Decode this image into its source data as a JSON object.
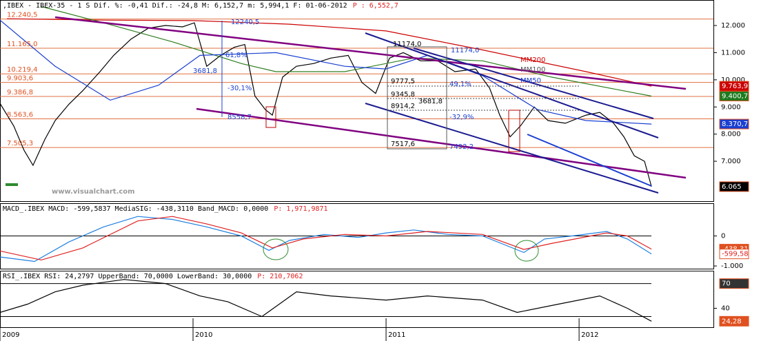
{
  "chart_data": [
    {
      "type": "line",
      "title": ",IBEX - IBEX-35 - 1 S Dif. %: -0,41 Dif.: -24,8 M: 6,152,7 m: 5,994,1 F: 01-06-2012",
      "price_label": "P : 6,552,7",
      "xlim": [
        2009,
        2012.696
      ],
      "xticks": [
        2009,
        2010,
        2011,
        2012
      ],
      "ylim": [
        5530,
        12940
      ],
      "yticks": [
        {
          "value": 12000,
          "label": "12.000"
        },
        {
          "value": 11000,
          "label": "11.000"
        },
        {
          "value": 10000,
          "label": "10.000"
        },
        {
          "value": 9000,
          "label": "9.000"
        },
        {
          "value": 8000,
          "label": "8.000"
        },
        {
          "value": 7000,
          "label": "7.000"
        }
      ],
      "levels": [
        {
          "value": 12240.5,
          "label": "12.240,5"
        },
        {
          "value": 11165.0,
          "label": "11.165,0"
        },
        {
          "value": 10219.4,
          "label": "10.219,4"
        },
        {
          "value": 9903.6,
          "label": "9.903,6"
        },
        {
          "value": 9386.8,
          "label": "9.386,8"
        },
        {
          "value": 8563.6,
          "label": "8.563,6"
        },
        {
          "value": 7505.3,
          "label": "7.505,3"
        }
      ],
      "series": [
        {
          "name": "IBEX",
          "color": "#000000",
          "x": [
            2009.0,
            2009.071,
            2009.125,
            2009.171,
            2009.232,
            2009.286,
            2009.357,
            2009.429,
            2009.518,
            2009.589,
            2009.679,
            2009.768,
            2009.857,
            2009.946,
            2010.007,
            2010.071,
            2010.143,
            2010.214,
            2010.268,
            2010.321,
            2010.375,
            2010.411,
            2010.464,
            2010.536,
            2010.625,
            2010.714,
            2010.804,
            2010.875,
            2010.946,
            2011.018,
            2011.089,
            2011.179,
            2011.268,
            2011.357,
            2011.464,
            2011.536,
            2011.589,
            2011.643,
            2011.696,
            2011.768,
            2011.839,
            2011.929,
            2012.036,
            2012.107,
            2012.179,
            2012.232,
            2012.286,
            2012.339,
            2012.375
          ],
          "values": [
            9130,
            8300,
            7400,
            6850,
            7800,
            8500,
            9100,
            9600,
            10300,
            10900,
            11500,
            11900,
            12000,
            11950,
            12100,
            10500,
            10900,
            11200,
            11300,
            9400,
            8900,
            8700,
            10100,
            10500,
            10600,
            10800,
            10900,
            9900,
            9500,
            10800,
            11000,
            10700,
            10700,
            10300,
            10400,
            9700,
            8700,
            7900,
            8300,
            9000,
            8500,
            8400,
            8700,
            8800,
            8400,
            7900,
            7200,
            7000,
            6065
          ]
        },
        {
          "name": "MM200",
          "color": "#cc0000",
          "x": [
            2009.036,
            2009.536,
            2010.0,
            2010.5,
            2011.0,
            2011.5,
            2012.036,
            2012.375
          ],
          "values": [
            12250,
            12200,
            12180,
            12050,
            11800,
            11100,
            10300,
            9763.9
          ]
        },
        {
          "name": "MM100",
          "color": "#2e7d1e",
          "x": [
            2009.214,
            2009.536,
            2009.893,
            2010.25,
            2010.429,
            2010.786,
            2011.143,
            2011.5,
            2011.857,
            2012.375
          ],
          "values": [
            12700,
            12100,
            11400,
            10600,
            10300,
            10300,
            10800,
            10700,
            10100,
            9400.7
          ]
        },
        {
          "name": "MM50",
          "color": "#1a3fd0",
          "x": [
            2009.0,
            2009.286,
            2009.571,
            2009.821,
            2010.036,
            2010.429,
            2010.786,
            2011.0,
            2011.214,
            2011.5,
            2011.786,
            2012.036,
            2012.375
          ],
          "values": [
            12200,
            10500,
            9250,
            9800,
            10900,
            11000,
            10500,
            10400,
            10900,
            10150,
            8900,
            8500,
            8370.7
          ]
        }
      ],
      "right_boxes": [
        {
          "value": 9763.9,
          "label": "9.763,9",
          "color": "#cc0000"
        },
        {
          "value": 9400.7,
          "label": "9.400,7",
          "color": "#1e7a1e"
        },
        {
          "value": 8370.7,
          "label": "8.370,7",
          "color": "#1a3fd0"
        },
        {
          "value": 6065,
          "label": "6.065",
          "color": "#000000"
        }
      ],
      "annotations": [
        "12240,5",
        "61,8%",
        "3681,8",
        "-30,1%",
        "8558,7",
        "11174,0",
        "11174,0",
        "9777,5",
        "49,1%",
        "9345,8",
        "8914,2",
        "3681,8",
        "-32,9%",
        "7517,6",
        "7492,2",
        "MM200",
        "MM100",
        "MM50",
        "www.visualchart.com"
      ]
    },
    {
      "type": "line",
      "title": "MACD_.IBEX MACD: -599,5837 MediaSIG: -438,3110 Band_MACD: 0,0000",
      "price_label": "P: 1,971,9871",
      "xlim": [
        2009,
        2012.696
      ],
      "ylim": [
        -1090,
        1090
      ],
      "yticks": [
        0,
        {
          "value": -1000,
          "label": "-1.000"
        }
      ],
      "series": [
        {
          "name": "MACD",
          "color": "#1e7fe0",
          "x": [
            2009.0,
            2009.179,
            2009.357,
            2009.536,
            2009.714,
            2009.893,
            2010.071,
            2010.25,
            2010.393,
            2010.5,
            2010.679,
            2010.857,
            2011.0,
            2011.143,
            2011.321,
            2011.5,
            2011.714,
            2011.821,
            2011.964,
            2012.143,
            2012.25,
            2012.375
          ],
          "values": [
            -700,
            -850,
            -200,
            300,
            650,
            550,
            300,
            0,
            -480,
            -150,
            50,
            -50,
            100,
            200,
            50,
            0,
            -550,
            -100,
            0,
            150,
            -100,
            -599.58
          ]
        },
        {
          "name": "MediaSIG",
          "color": "#e02020",
          "x": [
            2009.0,
            2009.214,
            2009.429,
            2009.714,
            2009.893,
            2010.071,
            2010.25,
            2010.411,
            2010.571,
            2010.786,
            2011.0,
            2011.214,
            2011.5,
            2011.714,
            2011.857,
            2012.143,
            2012.25,
            2012.375
          ],
          "values": [
            -500,
            -800,
            -400,
            500,
            650,
            400,
            100,
            -400,
            -100,
            50,
            0,
            150,
            50,
            -450,
            -250,
            100,
            0,
            -438.31
          ]
        }
      ],
      "right_boxes": [
        {
          "value": -438.31,
          "label": "-438,31",
          "color": "#e05020"
        },
        {
          "value": -599.58,
          "label": "-599,58",
          "color": "#ffffff"
        }
      ]
    },
    {
      "type": "line",
      "title": "RSI_.IBEX RSI: 24,2797 UpperBand: 70,0000 LowerBand: 30,0000",
      "price_label": "P: 210,7062",
      "xlim": [
        2009,
        2012.696
      ],
      "xticks": [
        2009,
        2010,
        2011,
        2012
      ],
      "ylim": [
        17,
        85.6
      ],
      "yticks": [
        40
      ],
      "bands": [
        70,
        30
      ],
      "series": [
        {
          "name": "RSI",
          "color": "#000000",
          "x": [
            2009.0,
            2009.143,
            2009.286,
            2009.429,
            2009.643,
            2009.857,
            2010.036,
            2010.179,
            2010.357,
            2010.536,
            2010.714,
            2011.0,
            2011.214,
            2011.5,
            2011.679,
            2011.893,
            2012.107,
            2012.25,
            2012.375
          ],
          "values": [
            35,
            45,
            60,
            68,
            75,
            70,
            55,
            48,
            30,
            60,
            55,
            50,
            55,
            50,
            35,
            45,
            55,
            40,
            24.28
          ]
        }
      ],
      "right_boxes": [
        {
          "value": 70,
          "label": "70",
          "color": "#333333"
        },
        {
          "value": 24.28,
          "label": "24,28",
          "color": "#e05020"
        }
      ]
    }
  ]
}
